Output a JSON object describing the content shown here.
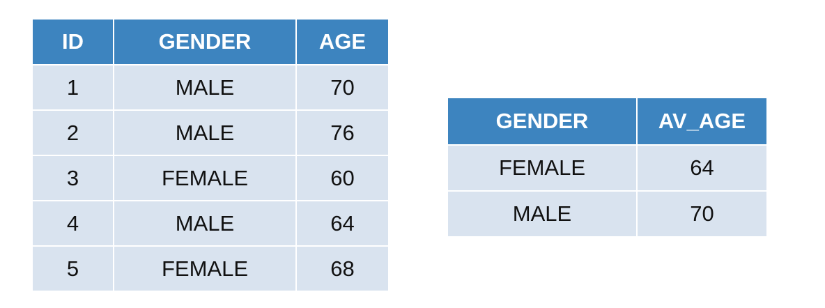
{
  "source_table": {
    "headers": [
      "ID",
      "GENDER",
      "AGE"
    ],
    "rows": [
      [
        "1",
        "MALE",
        "70"
      ],
      [
        "2",
        "MALE",
        "76"
      ],
      [
        "3",
        "FEMALE",
        "60"
      ],
      [
        "4",
        "MALE",
        "64"
      ],
      [
        "5",
        "FEMALE",
        "68"
      ]
    ]
  },
  "result_table": {
    "headers": [
      "GENDER",
      "AV_AGE"
    ],
    "rows": [
      [
        "FEMALE",
        "64"
      ],
      [
        "MALE",
        "70"
      ]
    ]
  },
  "colors": {
    "header_bg": "#3d84bf",
    "cell_bg": "#d9e3ef",
    "header_text": "#ffffff",
    "cell_text": "#111111"
  }
}
